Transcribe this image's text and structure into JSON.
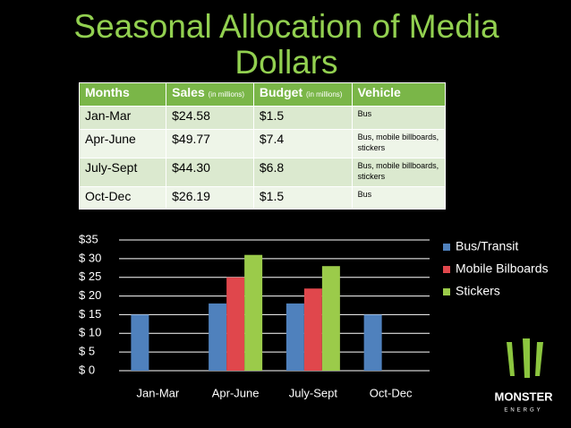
{
  "title": "Seasonal Allocation of Media Dollars",
  "table": {
    "header": [
      {
        "text": "Months"
      },
      {
        "text": "Sales",
        "note": "(in millions)"
      },
      {
        "text": "Budget",
        "note": "(in millions)"
      },
      {
        "text": "Vehicle"
      }
    ],
    "rows": [
      [
        "Jan-Mar",
        "$24.58",
        "$1.5",
        "Bus"
      ],
      [
        "Apr-June",
        "$49.77",
        "$7.4",
        "Bus, mobile billboards, stickers"
      ],
      [
        "July-Sept",
        "$44.30",
        "$6.8",
        "Bus, mobile billboards, stickers"
      ],
      [
        "Oct-Dec",
        "$26.19",
        "$1.5",
        "Bus"
      ]
    ]
  },
  "chart_data": {
    "type": "bar",
    "categories": [
      "Jan-Mar",
      "Apr-June",
      "July-Sept",
      "Oct-Dec"
    ],
    "series": [
      {
        "name": "Bus/Transit",
        "color": "#4f81bd",
        "values": [
          15,
          18,
          18,
          15
        ]
      },
      {
        "name": "Mobile Bilboards",
        "color": "#e0474c",
        "values": [
          null,
          25,
          22,
          null
        ]
      },
      {
        "name": "Stickers",
        "color": "#9bcb4a",
        "values": [
          null,
          31,
          28,
          null
        ]
      }
    ],
    "ylim": [
      0,
      35
    ],
    "yticks": [
      {
        "value": 0,
        "label": "$  0"
      },
      {
        "value": 5,
        "label": "$  5"
      },
      {
        "value": 10,
        "label": "$ 10"
      },
      {
        "value": 15,
        "label": "$ 15"
      },
      {
        "value": 20,
        "label": "$ 20"
      },
      {
        "value": 25,
        "label": "$ 25"
      },
      {
        "value": 30,
        "label": "$ 30"
      },
      {
        "value": 35,
        "label": "$35"
      }
    ],
    "grid": true,
    "legend": "right"
  },
  "logo": {
    "name": "MONSTER",
    "sub": "ENERGY"
  }
}
